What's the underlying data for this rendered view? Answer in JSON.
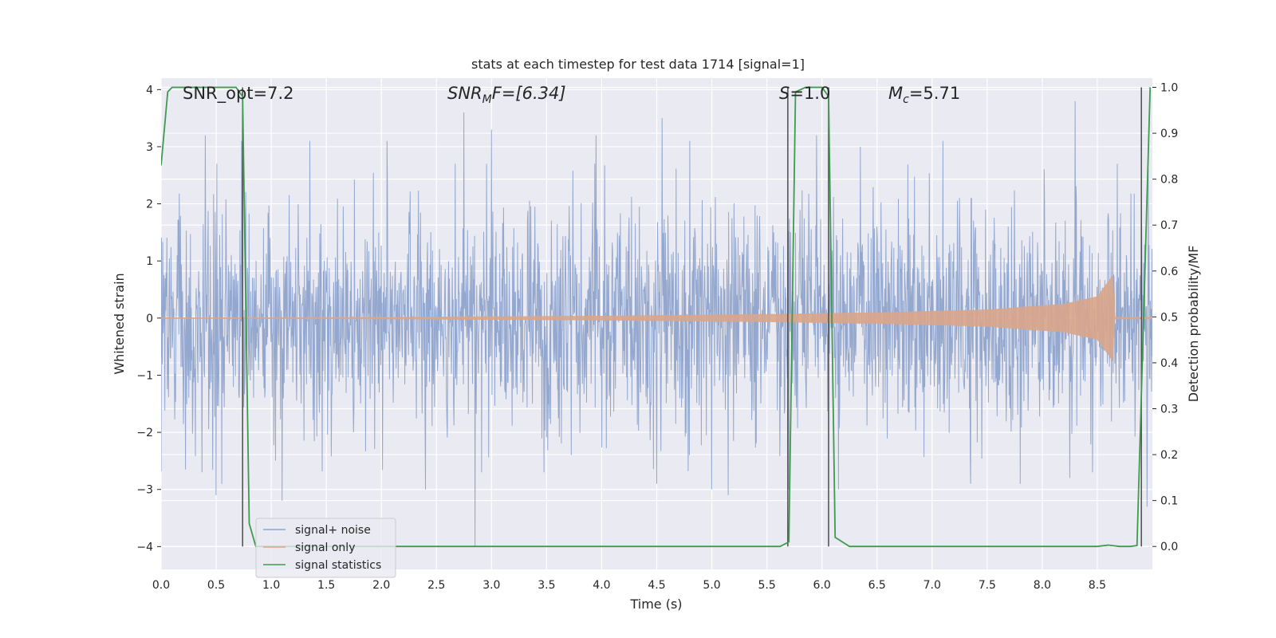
{
  "chart_data": {
    "type": "line",
    "title": "stats at each timestep for test data 1714 [signal=1]",
    "xlabel": "Time (s)",
    "ylabel": "Whitened strain",
    "y2label": "Detection probability/MF",
    "xlim": [
      0.0,
      9.0
    ],
    "ylim": [
      -4.4,
      4.2
    ],
    "y2lim": [
      -0.05,
      1.02
    ],
    "xticks": [
      0.0,
      0.5,
      1.0,
      1.5,
      2.0,
      2.5,
      3.0,
      3.5,
      4.0,
      4.5,
      5.0,
      5.5,
      6.0,
      6.5,
      7.0,
      7.5,
      8.0,
      8.5
    ],
    "xtick_labels": [
      "0.0",
      "0.5",
      "1.0",
      "1.5",
      "2.0",
      "2.5",
      "3.0",
      "3.5",
      "4.0",
      "4.5",
      "5.0",
      "5.5",
      "6.0",
      "6.5",
      "7.0",
      "7.5",
      "8.0",
      "8.5"
    ],
    "yticks": [
      -4,
      -3,
      -2,
      -1,
      0,
      1,
      2,
      3,
      4
    ],
    "ytick_labels": [
      "−4",
      "−3",
      "−2",
      "−1",
      "0",
      "1",
      "2",
      "3",
      "4"
    ],
    "y2ticks": [
      0.0,
      0.1,
      0.2,
      0.3,
      0.4,
      0.5,
      0.6,
      0.7,
      0.8,
      0.9,
      1.0
    ],
    "y2tick_labels": [
      "0.0",
      "0.1",
      "0.2",
      "0.3",
      "0.4",
      "0.5",
      "0.6",
      "0.7",
      "0.8",
      "0.9",
      "1.0"
    ],
    "grid": true,
    "legend_position": "lower-left",
    "annotations": {
      "snr_opt": "SNR_opt=7.2",
      "snr_mf": {
        "base": "SNR",
        "sub": "M",
        "rest": "F=[6.34]"
      },
      "s": {
        "base": "S",
        "rest": "=1.0"
      },
      "mc": {
        "base": "M",
        "sub": "c",
        "rest": "=5.71"
      }
    },
    "series": [
      {
        "name": "signal+ noise",
        "color": "#8fa4cc",
        "axis": "left",
        "kind": "whitened noise, amplitude ~ ±1.5 typical, peaks to ±3.5",
        "spikes": [
          [
            0.4,
            3.2
          ],
          [
            0.73,
            3.1
          ],
          [
            1.1,
            3.3
          ],
          [
            1.35,
            3.1
          ],
          [
            2.05,
            3.1
          ],
          [
            2.75,
            3.6
          ],
          [
            3.0,
            3.3
          ],
          [
            3.95,
            3.2
          ],
          [
            4.55,
            3.5
          ],
          [
            4.8,
            3.1
          ],
          [
            5.95,
            3.2
          ],
          [
            6.35,
            3.0
          ],
          [
            7.1,
            3.1
          ],
          [
            7.8,
            3.1
          ],
          [
            8.3,
            3.8
          ],
          [
            8.95,
            3.3
          ],
          [
            0.5,
            -3.1
          ],
          [
            0.55,
            -2.9
          ],
          [
            1.1,
            -3.2
          ],
          [
            2.4,
            -3.0
          ],
          [
            2.85,
            -4.0
          ],
          [
            4.5,
            -2.9
          ],
          [
            5.0,
            -3.0
          ],
          [
            5.15,
            -3.1
          ],
          [
            5.7,
            -3.0
          ],
          [
            6.15,
            -3.0
          ],
          [
            7.35,
            -2.9
          ],
          [
            7.8,
            -2.9
          ],
          [
            8.25,
            -2.8
          ],
          [
            8.95,
            -3.3
          ]
        ]
      },
      {
        "name": "signal only",
        "color": "#d9a58a",
        "axis": "left",
        "kind": "chirp envelope growing until merger",
        "envelope": [
          [
            0.0,
            0.01
          ],
          [
            2.0,
            0.02
          ],
          [
            4.0,
            0.04
          ],
          [
            5.5,
            0.07
          ],
          [
            6.5,
            0.1
          ],
          [
            7.5,
            0.15
          ],
          [
            8.2,
            0.25
          ],
          [
            8.5,
            0.38
          ],
          [
            8.64,
            0.75
          ],
          [
            8.66,
            0.02
          ],
          [
            9.0,
            0.02
          ]
        ]
      },
      {
        "name": "signal statistics",
        "color": "#3f9a4f",
        "axis": "right",
        "x": [
          0.0,
          0.06,
          0.1,
          0.2,
          0.3,
          0.4,
          0.5,
          0.6,
          0.68,
          0.74,
          0.8,
          0.86,
          1.0,
          2.0,
          3.0,
          4.0,
          5.0,
          5.5,
          5.62,
          5.7,
          5.76,
          5.85,
          6.0,
          6.06,
          6.12,
          6.25,
          7.0,
          8.0,
          8.5,
          8.6,
          8.7,
          8.8,
          8.86,
          8.92,
          8.98
        ],
        "y": [
          0.83,
          0.99,
          1.0,
          1.0,
          1.0,
          1.0,
          1.0,
          1.0,
          1.0,
          0.98,
          0.05,
          0.0,
          0.0,
          0.0,
          0.0,
          0.0,
          0.0,
          0.0,
          0.0,
          0.01,
          0.99,
          1.0,
          1.0,
          0.98,
          0.02,
          0.0,
          0.0,
          0.0,
          0.0,
          0.003,
          0.0,
          0.0,
          0.002,
          0.5,
          1.0
        ]
      }
    ],
    "vertical_markers": [
      0.74,
      5.69,
      6.06,
      8.9
    ]
  }
}
